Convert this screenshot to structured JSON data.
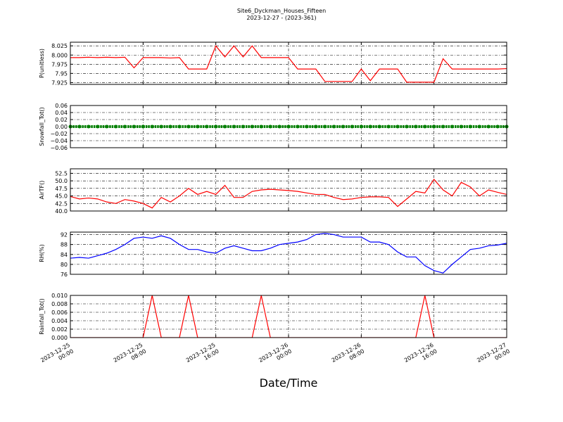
{
  "title": "Site6_Dyckman_Houses_Fifteen",
  "subtitle": "2023-12-27 - (2023-361)",
  "chart_data": [
    {
      "type": "line",
      "ylabel": "P(unitless)",
      "color": "#ff0000",
      "grid": true,
      "x": [
        "2023-12-25 00:00",
        "2023-12-25 01:00",
        "2023-12-25 02:00",
        "2023-12-25 03:00",
        "2023-12-25 04:00",
        "2023-12-25 05:00",
        "2023-12-25 06:00",
        "2023-12-25 07:00",
        "2023-12-25 08:00",
        "2023-12-25 09:00",
        "2023-12-25 10:00",
        "2023-12-25 11:00",
        "2023-12-25 12:00",
        "2023-12-25 13:00",
        "2023-12-25 14:00",
        "2023-12-25 15:00",
        "2023-12-25 16:00",
        "2023-12-25 17:00",
        "2023-12-25 18:00",
        "2023-12-25 19:00",
        "2023-12-25 20:00",
        "2023-12-25 21:00",
        "2023-12-25 22:00",
        "2023-12-25 23:00",
        "2023-12-26 00:00",
        "2023-12-26 01:00",
        "2023-12-26 02:00",
        "2023-12-26 03:00",
        "2023-12-26 04:00",
        "2023-12-26 05:00",
        "2023-12-26 06:00",
        "2023-12-26 07:00",
        "2023-12-26 08:00",
        "2023-12-26 09:00",
        "2023-12-26 10:00",
        "2023-12-26 11:00",
        "2023-12-26 12:00",
        "2023-12-26 13:00",
        "2023-12-26 14:00",
        "2023-12-26 15:00",
        "2023-12-26 16:00",
        "2023-12-26 17:00",
        "2023-12-26 18:00",
        "2023-12-26 19:00",
        "2023-12-26 20:00",
        "2023-12-26 21:00",
        "2023-12-26 22:00",
        "2023-12-26 23:00",
        "2023-12-27 00:00"
      ],
      "values": [
        7.993,
        7.993,
        7.994,
        7.993,
        7.994,
        7.993,
        7.994,
        7.965,
        7.993,
        7.993,
        7.993,
        7.992,
        7.993,
        7.962,
        7.962,
        7.962,
        8.025,
        7.995,
        8.025,
        7.995,
        8.025,
        7.993,
        7.993,
        7.993,
        7.993,
        7.962,
        7.962,
        7.962,
        7.928,
        7.928,
        7.928,
        7.928,
        7.962,
        7.93,
        7.962,
        7.962,
        7.962,
        7.926,
        7.926,
        7.926,
        7.926,
        7.99,
        7.962,
        7.962,
        7.962,
        7.962,
        7.962,
        7.962,
        7.963
      ],
      "ylim": [
        7.92,
        8.035
      ],
      "yticks": [
        7.925,
        7.95,
        7.975,
        {
          "value": 8,
          "label": "8.000"
        },
        8.025
      ],
      "xlim": [
        "2023-12-25 00:00",
        "2023-12-27 00:00"
      ],
      "xticks": [
        "2023-12-25 00:00",
        "2023-12-25 08:00",
        "2023-12-25 16:00",
        "2023-12-26 00:00",
        "2023-12-26 08:00",
        "2023-12-26 16:00",
        "2023-12-27 00:00"
      ]
    },
    {
      "type": "scatter",
      "ylabel": "Snowfall_Tot()",
      "color": "#008000",
      "grid": true,
      "x": [
        "2023-12-25 00:00",
        "2023-12-25 01:00",
        "2023-12-25 02:00",
        "2023-12-25 03:00",
        "2023-12-25 04:00",
        "2023-12-25 05:00",
        "2023-12-25 06:00",
        "2023-12-25 07:00",
        "2023-12-25 08:00",
        "2023-12-25 09:00",
        "2023-12-25 10:00",
        "2023-12-25 11:00",
        "2023-12-25 12:00",
        "2023-12-25 13:00",
        "2023-12-25 14:00",
        "2023-12-25 15:00",
        "2023-12-25 16:00",
        "2023-12-25 17:00",
        "2023-12-25 18:00",
        "2023-12-25 19:00",
        "2023-12-25 20:00",
        "2023-12-25 21:00",
        "2023-12-25 22:00",
        "2023-12-25 23:00",
        "2023-12-26 00:00",
        "2023-12-26 01:00",
        "2023-12-26 02:00",
        "2023-12-26 03:00",
        "2023-12-26 04:00",
        "2023-12-26 05:00",
        "2023-12-26 06:00",
        "2023-12-26 07:00",
        "2023-12-26 08:00",
        "2023-12-26 09:00",
        "2023-12-26 10:00",
        "2023-12-26 11:00",
        "2023-12-26 12:00",
        "2023-12-26 13:00",
        "2023-12-26 14:00",
        "2023-12-26 15:00",
        "2023-12-26 16:00",
        "2023-12-26 17:00",
        "2023-12-26 18:00",
        "2023-12-26 19:00",
        "2023-12-26 20:00",
        "2023-12-26 21:00",
        "2023-12-26 22:00",
        "2023-12-26 23:00",
        "2023-12-27 00:00"
      ],
      "values": [
        0,
        0,
        0,
        0,
        0,
        0,
        0,
        0,
        0,
        0,
        0,
        0,
        0,
        0,
        0,
        0,
        0,
        0,
        0,
        0,
        0,
        0,
        0,
        0,
        0,
        0,
        0,
        0,
        0,
        0,
        0,
        0,
        0,
        0,
        0,
        0,
        0,
        0,
        0,
        0,
        0,
        0,
        0,
        0,
        0,
        0,
        0,
        0,
        0
      ],
      "ylim": [
        -0.06,
        0.06
      ],
      "yticks": [
        {
          "value": -0.06,
          "label": "−0.06"
        },
        {
          "value": -0.04,
          "label": "−0.04"
        },
        {
          "value": -0.02,
          "label": "−0.02"
        },
        {
          "value": 0,
          "label": "0.00"
        },
        {
          "value": 0.02,
          "label": "0.02"
        },
        {
          "value": 0.04,
          "label": "0.04"
        },
        {
          "value": 0.06,
          "label": "0.06"
        }
      ],
      "xlim": [
        "2023-12-25 00:00",
        "2023-12-27 00:00"
      ],
      "xticks": [
        "2023-12-25 00:00",
        "2023-12-25 08:00",
        "2023-12-25 16:00",
        "2023-12-26 00:00",
        "2023-12-26 08:00",
        "2023-12-26 16:00",
        "2023-12-27 00:00"
      ]
    },
    {
      "type": "line",
      "ylabel": "AirTF()",
      "color": "#ff0000",
      "grid": true,
      "x": [
        "2023-12-25 00:00",
        "2023-12-25 01:00",
        "2023-12-25 02:00",
        "2023-12-25 03:00",
        "2023-12-25 04:00",
        "2023-12-25 05:00",
        "2023-12-25 06:00",
        "2023-12-25 07:00",
        "2023-12-25 08:00",
        "2023-12-25 09:00",
        "2023-12-25 10:00",
        "2023-12-25 11:00",
        "2023-12-25 12:00",
        "2023-12-25 13:00",
        "2023-12-25 14:00",
        "2023-12-25 15:00",
        "2023-12-25 16:00",
        "2023-12-25 17:00",
        "2023-12-25 18:00",
        "2023-12-25 19:00",
        "2023-12-25 20:00",
        "2023-12-25 21:00",
        "2023-12-25 22:00",
        "2023-12-25 23:00",
        "2023-12-26 00:00",
        "2023-12-26 01:00",
        "2023-12-26 02:00",
        "2023-12-26 03:00",
        "2023-12-26 04:00",
        "2023-12-26 05:00",
        "2023-12-26 06:00",
        "2023-12-26 07:00",
        "2023-12-26 08:00",
        "2023-12-26 09:00",
        "2023-12-26 10:00",
        "2023-12-26 11:00",
        "2023-12-26 12:00",
        "2023-12-26 13:00",
        "2023-12-26 14:00",
        "2023-12-26 15:00",
        "2023-12-26 16:00",
        "2023-12-26 17:00",
        "2023-12-26 18:00",
        "2023-12-26 19:00",
        "2023-12-26 20:00",
        "2023-12-26 21:00",
        "2023-12-26 22:00",
        "2023-12-26 23:00",
        "2023-12-27 00:00"
      ],
      "values": [
        44.8,
        44,
        44.3,
        44,
        43,
        42.5,
        43.8,
        43.3,
        42.5,
        41,
        44.5,
        43,
        45,
        47.5,
        45.5,
        46.5,
        45.5,
        48.5,
        44.5,
        44.5,
        46.5,
        47,
        47.2,
        47,
        46.8,
        46.5,
        46,
        45.5,
        45.5,
        44.5,
        43.8,
        44,
        44.5,
        44.7,
        44.7,
        44.5,
        41.5,
        44,
        46.5,
        46,
        50.5,
        47,
        45,
        49.5,
        48,
        45,
        47,
        46.2,
        45.5
      ],
      "ylim": [
        40,
        54
      ],
      "yticks": [
        {
          "value": 40,
          "label": "40.0"
        },
        42.5,
        {
          "value": 45,
          "label": "45.0"
        },
        47.5,
        {
          "value": 50,
          "label": "50.0"
        },
        52.5
      ],
      "xlim": [
        "2023-12-25 00:00",
        "2023-12-27 00:00"
      ],
      "xticks": [
        "2023-12-25 00:00",
        "2023-12-25 08:00",
        "2023-12-25 16:00",
        "2023-12-26 00:00",
        "2023-12-26 08:00",
        "2023-12-26 16:00",
        "2023-12-27 00:00"
      ]
    },
    {
      "type": "line",
      "ylabel": "RH(%)",
      "color": "#0000ff",
      "grid": true,
      "x": [
        "2023-12-25 00:00",
        "2023-12-25 01:00",
        "2023-12-25 02:00",
        "2023-12-25 03:00",
        "2023-12-25 04:00",
        "2023-12-25 05:00",
        "2023-12-25 06:00",
        "2023-12-25 07:00",
        "2023-12-25 08:00",
        "2023-12-25 09:00",
        "2023-12-25 10:00",
        "2023-12-25 11:00",
        "2023-12-25 12:00",
        "2023-12-25 13:00",
        "2023-12-25 14:00",
        "2023-12-25 15:00",
        "2023-12-25 16:00",
        "2023-12-25 17:00",
        "2023-12-25 18:00",
        "2023-12-25 19:00",
        "2023-12-25 20:00",
        "2023-12-25 21:00",
        "2023-12-25 22:00",
        "2023-12-25 23:00",
        "2023-12-26 00:00",
        "2023-12-26 01:00",
        "2023-12-26 02:00",
        "2023-12-26 03:00",
        "2023-12-26 04:00",
        "2023-12-26 05:00",
        "2023-12-26 06:00",
        "2023-12-26 07:00",
        "2023-12-26 08:00",
        "2023-12-26 09:00",
        "2023-12-26 10:00",
        "2023-12-26 11:00",
        "2023-12-26 12:00",
        "2023-12-26 13:00",
        "2023-12-26 14:00",
        "2023-12-26 15:00",
        "2023-12-26 16:00",
        "2023-12-26 17:00",
        "2023-12-26 18:00",
        "2023-12-26 19:00",
        "2023-12-26 20:00",
        "2023-12-26 21:00",
        "2023-12-26 22:00",
        "2023-12-26 23:00",
        "2023-12-27 00:00"
      ],
      "values": [
        82.5,
        82.8,
        82.5,
        83.5,
        84.5,
        86,
        88,
        90.5,
        91,
        90.5,
        91.5,
        90.5,
        88,
        86,
        86,
        85,
        84.5,
        86.5,
        87.5,
        86.5,
        85.5,
        85.5,
        86.5,
        88,
        88.5,
        89,
        90,
        92,
        92.5,
        92,
        91,
        91,
        91,
        89,
        89,
        88,
        85,
        83,
        83,
        79.5,
        77.5,
        76.5,
        80,
        83,
        86,
        86.5,
        87.5,
        87.8,
        88.5
      ],
      "ylim": [
        76,
        93
      ],
      "yticks": [
        76,
        80,
        84,
        88,
        92
      ],
      "xlim": [
        "2023-12-25 00:00",
        "2023-12-27 00:00"
      ],
      "xticks": [
        "2023-12-25 00:00",
        "2023-12-25 08:00",
        "2023-12-25 16:00",
        "2023-12-26 00:00",
        "2023-12-26 08:00",
        "2023-12-26 16:00",
        "2023-12-27 00:00"
      ]
    },
    {
      "type": "line",
      "ylabel": "Rainfall_Tot()",
      "xlabel": "Date/Time",
      "color": "#ff0000",
      "grid": true,
      "x": [
        "2023-12-25 00:00",
        "2023-12-25 01:00",
        "2023-12-25 02:00",
        "2023-12-25 03:00",
        "2023-12-25 04:00",
        "2023-12-25 05:00",
        "2023-12-25 06:00",
        "2023-12-25 07:00",
        "2023-12-25 08:00",
        "2023-12-25 09:00",
        "2023-12-25 10:00",
        "2023-12-25 11:00",
        "2023-12-25 12:00",
        "2023-12-25 13:00",
        "2023-12-25 14:00",
        "2023-12-25 15:00",
        "2023-12-25 16:00",
        "2023-12-25 17:00",
        "2023-12-25 18:00",
        "2023-12-25 19:00",
        "2023-12-25 20:00",
        "2023-12-25 21:00",
        "2023-12-25 22:00",
        "2023-12-25 23:00",
        "2023-12-26 00:00",
        "2023-12-26 01:00",
        "2023-12-26 02:00",
        "2023-12-26 03:00",
        "2023-12-26 04:00",
        "2023-12-26 05:00",
        "2023-12-26 06:00",
        "2023-12-26 07:00",
        "2023-12-26 08:00",
        "2023-12-26 09:00",
        "2023-12-26 10:00",
        "2023-12-26 11:00",
        "2023-12-26 12:00",
        "2023-12-26 13:00",
        "2023-12-26 14:00",
        "2023-12-26 15:00",
        "2023-12-26 16:00",
        "2023-12-26 17:00",
        "2023-12-26 18:00",
        "2023-12-26 19:00",
        "2023-12-26 20:00",
        "2023-12-26 21:00",
        "2023-12-26 22:00",
        "2023-12-26 23:00",
        "2023-12-27 00:00"
      ],
      "values": [
        0,
        0,
        0,
        0,
        0,
        0,
        0,
        0,
        0,
        0.01,
        0,
        0,
        0,
        0.01,
        0,
        0,
        0,
        0,
        0,
        0,
        0,
        0.01,
        0,
        0,
        0,
        0,
        0,
        0,
        0,
        0,
        0,
        0,
        0,
        0,
        0,
        0,
        0,
        0,
        0,
        0.01,
        0,
        0,
        0,
        0,
        0,
        0,
        0,
        0,
        0
      ],
      "ylim": [
        0,
        0.01
      ],
      "yticks": [
        {
          "value": 0,
          "label": "0.000"
        },
        {
          "value": 0.002,
          "label": "0.002"
        },
        {
          "value": 0.004,
          "label": "0.004"
        },
        {
          "value": 0.006,
          "label": "0.006"
        },
        {
          "value": 0.008,
          "label": "0.008"
        },
        {
          "value": 0.01,
          "label": "0.010"
        }
      ],
      "xlim": [
        "2023-12-25 00:00",
        "2023-12-27 00:00"
      ],
      "xticks": [
        "2023-12-25 00:00",
        "2023-12-25 08:00",
        "2023-12-25 16:00",
        "2023-12-26 00:00",
        "2023-12-26 08:00",
        "2023-12-26 16:00",
        "2023-12-27 00:00"
      ]
    }
  ]
}
